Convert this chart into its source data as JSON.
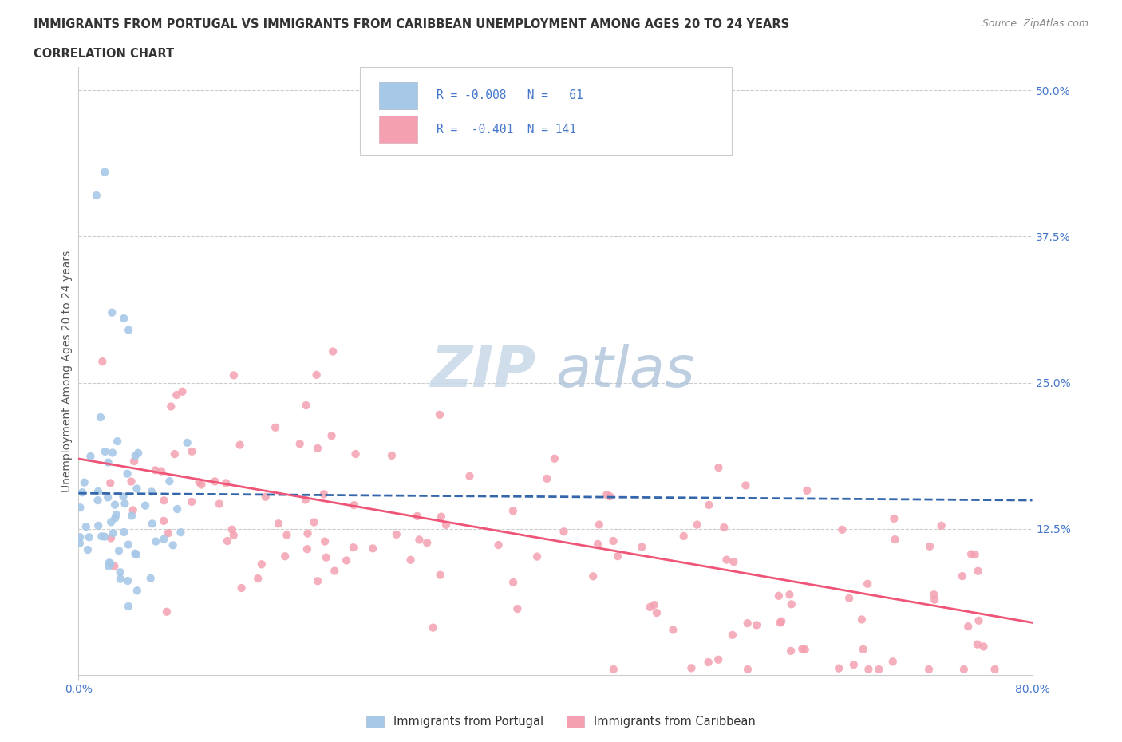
{
  "title_line1": "IMMIGRANTS FROM PORTUGAL VS IMMIGRANTS FROM CARIBBEAN UNEMPLOYMENT AMONG AGES 20 TO 24 YEARS",
  "title_line2": "CORRELATION CHART",
  "source_text": "Source: ZipAtlas.com",
  "ylabel": "Unemployment Among Ages 20 to 24 years",
  "xlim": [
    0.0,
    0.8
  ],
  "ylim": [
    0.0,
    0.52
  ],
  "ytick_right_values": [
    0.125,
    0.25,
    0.375,
    0.5
  ],
  "ytick_right_labels": [
    "12.5%",
    "25.0%",
    "37.5%",
    "50.0%"
  ],
  "grid_color": "#cccccc",
  "background_color": "#ffffff",
  "color_portugal": "#a8c8e8",
  "color_caribbean": "#f4a0b0",
  "trendline_portugal_color": "#3366aa",
  "trendline_caribbean_color": "#ee5577",
  "title_color": "#333333",
  "axis_color": "#4477cc",
  "legend_text_color": "#4477cc",
  "legend_R_color": "#cc3355",
  "watermark_zip_color": "#c8d8e8",
  "watermark_atlas_color": "#a8c0d8"
}
